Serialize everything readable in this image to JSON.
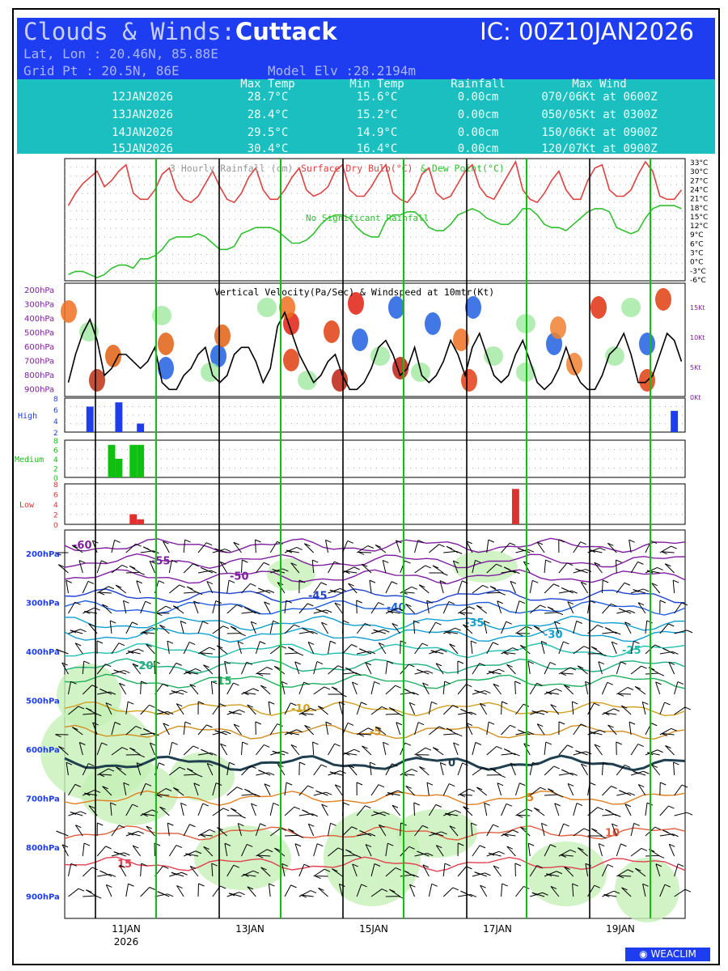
{
  "header": {
    "title_prefix": "Clouds & Winds:",
    "location": "Cuttack",
    "ic": "IC: 00Z10JAN2026",
    "latlon": "Lat, Lon : 20.46N, 85.88E",
    "grid": "Grid Pt  : 20.5N, 86E",
    "elevation": "Model Elv :28.2194m"
  },
  "summary": {
    "columns": [
      "Max Temp",
      "Min Temp",
      "Rainfall",
      "Max Wind"
    ],
    "rows": [
      {
        "date": "12JAN2026",
        "max": "28.7°C",
        "min": "15.6°C",
        "rain": "0.00cm",
        "wind": "070/06Kt at 0600Z"
      },
      {
        "date": "13JAN2026",
        "max": "28.4°C",
        "min": "15.2°C",
        "rain": "0.00cm",
        "wind": "050/05Kt at 0300Z"
      },
      {
        "date": "14JAN2026",
        "max": "29.5°C",
        "min": "14.9°C",
        "rain": "0.00cm",
        "wind": "150/06Kt at 0900Z"
      },
      {
        "date": "15JAN2026",
        "max": "30.4°C",
        "min": "16.4°C",
        "rain": "0.00cm",
        "wind": "120/07Kt at 0900Z"
      }
    ]
  },
  "chart_data": [
    {
      "type": "line",
      "title_parts": [
        {
          "text": "3 Hourly Rainfall (cm)",
          "color": "#999999"
        },
        {
          "text": "Surface Dry Bulb(°C)",
          "color": "#e04040"
        },
        {
          "text": "& Dew Point(°C)",
          "color": "#30c030"
        }
      ],
      "note": "No Significant Rainfall",
      "y_ticks": [
        "33°C",
        "30°C",
        "27°C",
        "24°C",
        "21°C",
        "18°C",
        "15°C",
        "12°C",
        "9°C",
        "6°C",
        "3°C",
        "0°C",
        "-3°C",
        "-6°C"
      ],
      "ylim": [
        -6,
        33
      ],
      "series": [
        {
          "color": "#e04040",
          "values": [
            18,
            22,
            25,
            27,
            29,
            24,
            26,
            29,
            31,
            22,
            20,
            20,
            23,
            28,
            30,
            23,
            20,
            19,
            21,
            25,
            29,
            24,
            20,
            19,
            22,
            27,
            30,
            23,
            20,
            20,
            23,
            27,
            30,
            23,
            21,
            22,
            24,
            29,
            31,
            23,
            21,
            21,
            24,
            28,
            31,
            22,
            20,
            19,
            22,
            28,
            30,
            22,
            20,
            21,
            25,
            29,
            31,
            24,
            21,
            20,
            24,
            28,
            32,
            23,
            20,
            19,
            22,
            26,
            29,
            23,
            20,
            20,
            26,
            30,
            31,
            23,
            21,
            21,
            23,
            28,
            32,
            29,
            21,
            20,
            20,
            23
          ]
        },
        {
          "color": "#30c030",
          "values": [
            -4,
            -3,
            -3,
            -4,
            -5,
            -4,
            -2,
            -1,
            -1,
            -2,
            1,
            1,
            2,
            4,
            7,
            8,
            8,
            8,
            9,
            8,
            6,
            4,
            4,
            5,
            9,
            10,
            11,
            11,
            11,
            10,
            8,
            6,
            6,
            7,
            9,
            12,
            14,
            15,
            15,
            14,
            11,
            9,
            8,
            8,
            13,
            15,
            15,
            16,
            16,
            14,
            11,
            10,
            10,
            12,
            15,
            16,
            17,
            16,
            14,
            13,
            12,
            12,
            14,
            17,
            17,
            15,
            12,
            11,
            11,
            10,
            12,
            14,
            16,
            17,
            17,
            16,
            11,
            10,
            9,
            10,
            14,
            17,
            18,
            18,
            18,
            17
          ]
        }
      ],
      "day_labels": [
        "11JAN",
        "13JAN",
        "15JAN",
        "17JAN",
        "19JAN"
      ],
      "year_label": "2026"
    },
    {
      "type": "heatmap",
      "title": "Vertical Velocity(Pa/Sec) & Windspeed at 10mtr(Kt)",
      "y_ticks": [
        "200hPa",
        "300hPa",
        "400hPa",
        "500hPa",
        "600hPa",
        "700hPa",
        "800hPa",
        "900hPa"
      ],
      "right_ticks": [
        "15Kt",
        "10Kt",
        "5Kt",
        "0Kt"
      ],
      "series": [
        {
          "name": "",
          "color": "#000000",
          "values": [
            2,
            6,
            9,
            11,
            8,
            3,
            4,
            6,
            6,
            5,
            4,
            5,
            7,
            2,
            1,
            1,
            3,
            4,
            6,
            7,
            3,
            2,
            3,
            6,
            7,
            7,
            5,
            2,
            4,
            10,
            12,
            9,
            6,
            4,
            2,
            3,
            5,
            6,
            3,
            1,
            1,
            2,
            4,
            7,
            8,
            6,
            3,
            4,
            7,
            3,
            2,
            3,
            5,
            8,
            6,
            3,
            7,
            9,
            6,
            3,
            2,
            3,
            6,
            8,
            5,
            2,
            1,
            2,
            4,
            7,
            4,
            2,
            1,
            1,
            3,
            6,
            7,
            9,
            6,
            2,
            2,
            3,
            6,
            9,
            8,
            5
          ]
        }
      ]
    },
    {
      "type": "bar",
      "label": "High",
      "color": "#1e3cf0",
      "ylim": [
        0,
        8
      ],
      "y_ticks": [
        8,
        6,
        4,
        2
      ],
      "values": [
        0,
        0,
        0,
        6,
        0,
        0,
        0,
        7,
        0,
        0,
        2,
        0,
        0,
        0,
        0,
        0,
        0,
        0,
        0,
        0,
        0,
        0,
        0,
        0,
        0,
        0,
        0,
        0,
        0,
        0,
        0,
        0,
        0,
        0,
        0,
        0,
        0,
        0,
        0,
        0,
        0,
        0,
        0,
        0,
        0,
        0,
        0,
        0,
        0,
        0,
        0,
        0,
        0,
        0,
        0,
        0,
        0,
        0,
        0,
        0,
        0,
        0,
        0,
        0,
        0,
        0,
        0,
        0,
        0,
        0,
        0,
        0,
        0,
        0,
        0,
        0,
        0,
        0,
        0,
        0,
        0,
        0,
        0,
        0,
        5,
        0
      ]
    },
    {
      "type": "bar",
      "label": "Medium",
      "color": "#10c010",
      "ylim": [
        0,
        8
      ],
      "y_ticks": [
        8,
        6,
        4,
        2,
        0
      ],
      "values": [
        0,
        0,
        0,
        0,
        0,
        0,
        7,
        4,
        0,
        7,
        7,
        0,
        0,
        0,
        0,
        0,
        0,
        0,
        0,
        0,
        0,
        0,
        0,
        0,
        0,
        0,
        0,
        0,
        0,
        0,
        0,
        0,
        0,
        0,
        0,
        0,
        0,
        0,
        0,
        0,
        0,
        0,
        0,
        0,
        0,
        0,
        0,
        0,
        0,
        0,
        0,
        0,
        0,
        0,
        0,
        0,
        0,
        0,
        0,
        0,
        0,
        0,
        0,
        0,
        0,
        0,
        0,
        0,
        0,
        0,
        0,
        0,
        0,
        0,
        0,
        0,
        0,
        0,
        0,
        0,
        0,
        0,
        0,
        0,
        0,
        0
      ]
    },
    {
      "type": "bar",
      "label": "Low",
      "color": "#e03030",
      "ylim": [
        0,
        8
      ],
      "y_ticks": [
        8,
        6,
        4,
        2,
        0
      ],
      "values": [
        0,
        0,
        0,
        0,
        0,
        0,
        0,
        0,
        0,
        2,
        1,
        0,
        0,
        0,
        0,
        0,
        0,
        0,
        0,
        0,
        0,
        0,
        0,
        0,
        0,
        0,
        0,
        0,
        0,
        0,
        0,
        0,
        0,
        0,
        0,
        0,
        0,
        0,
        0,
        0,
        0,
        0,
        0,
        0,
        0,
        0,
        0,
        0,
        0,
        0,
        0,
        0,
        0,
        0,
        0,
        0,
        0,
        0,
        0,
        0,
        0,
        0,
        7,
        0,
        0,
        0,
        0,
        0,
        0,
        0,
        0,
        0,
        0,
        0,
        0,
        0,
        0,
        0,
        0,
        0,
        0,
        0,
        0,
        0,
        0,
        0
      ]
    },
    {
      "type": "area",
      "y_ticks": [
        "200hPa",
        "300hPa",
        "400hPa",
        "500hPa",
        "600hPa",
        "700hPa",
        "800hPa",
        "900hPa"
      ],
      "contours": [
        {
          "label": "-60",
          "color": "#8020a0",
          "level": 0.04
        },
        {
          "label": "-55",
          "color": "#8020a0",
          "level": 0.08
        },
        {
          "label": "-50",
          "color": "#8020a0",
          "level": 0.12
        },
        {
          "label": "-45",
          "color": "#2040d0",
          "level": 0.17
        },
        {
          "label": "-40",
          "color": "#2060e0",
          "level": 0.2
        },
        {
          "label": "-35",
          "color": "#10a0d0",
          "level": 0.24
        },
        {
          "label": "-30",
          "color": "#10a0d0",
          "level": 0.27
        },
        {
          "label": "-25",
          "color": "#20c0b0",
          "level": 0.31
        },
        {
          "label": "-20",
          "color": "#20b080",
          "level": 0.35
        },
        {
          "label": "-15",
          "color": "#20b060",
          "level": 0.39
        },
        {
          "label": "-10",
          "color": "#d0a020",
          "level": 0.46
        },
        {
          "label": "-5",
          "color": "#d09020",
          "level": 0.52
        },
        {
          "label": "0",
          "color": "#204050",
          "level": 0.6
        },
        {
          "label": "5",
          "color": "#e08020",
          "level": 0.69
        },
        {
          "label": "10",
          "color": "#e06040",
          "level": 0.78
        },
        {
          "label": "15",
          "color": "#e04050",
          "level": 0.86
        }
      ]
    }
  ],
  "watermark": "WEACLIM"
}
